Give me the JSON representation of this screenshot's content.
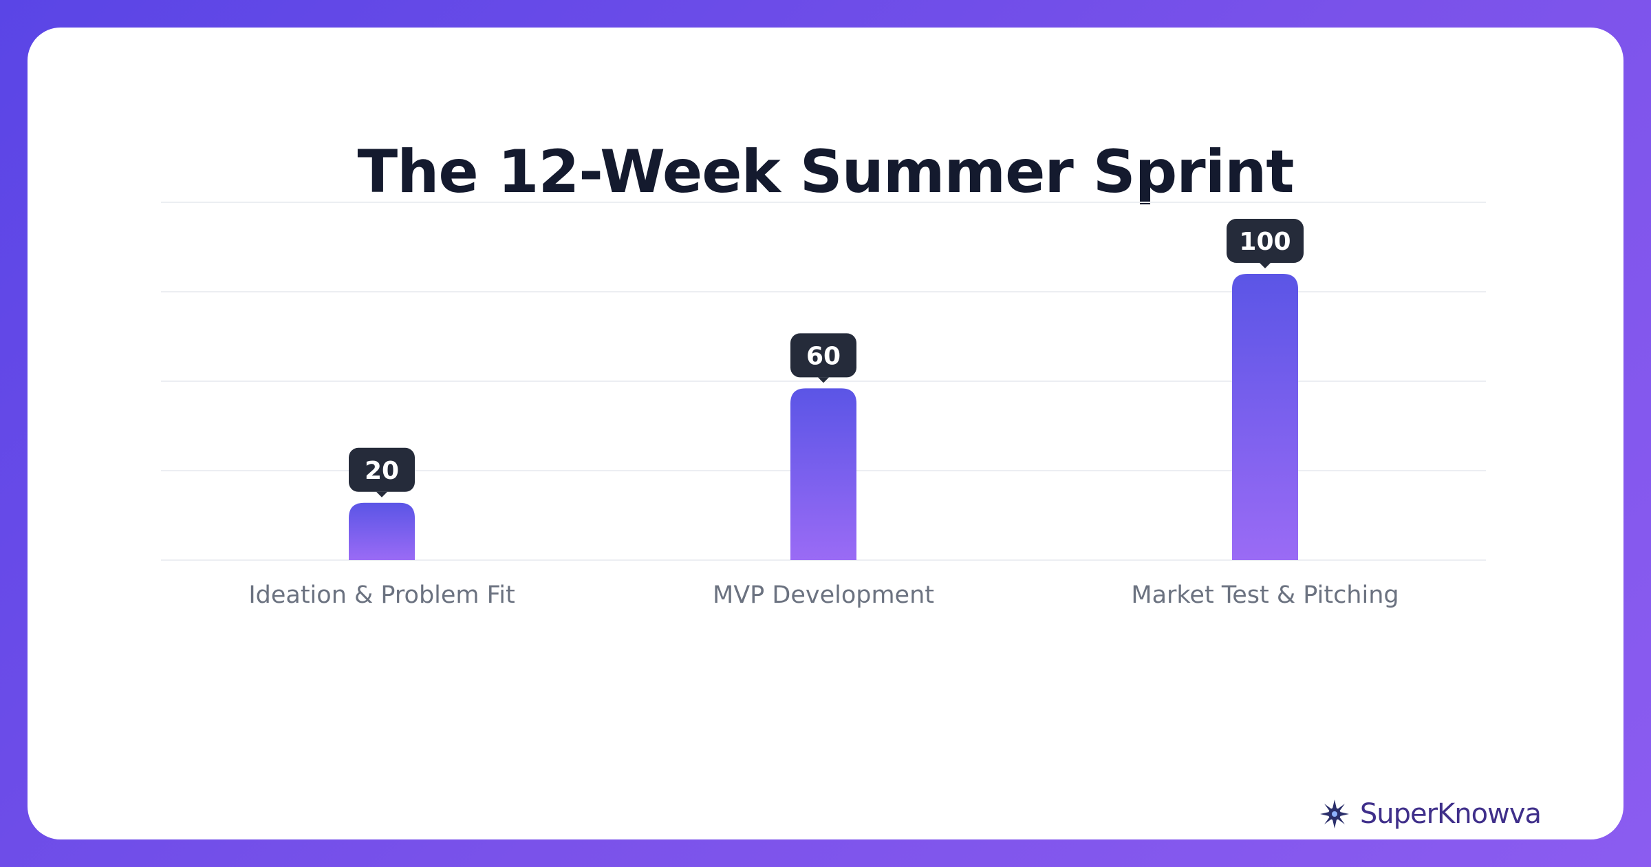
{
  "chart_data": {
    "type": "bar",
    "title": "The 12-Week Summer Sprint",
    "categories": [
      "Ideation & Problem Fit",
      "MVP Development",
      "Market Test & Pitching"
    ],
    "values": [
      20,
      60,
      100
    ],
    "ylim": [
      0,
      125
    ],
    "grid": true,
    "bar_color_top": "#5b55e6",
    "bar_color_bottom": "#9a6bf5",
    "label_bg": "#252b3a",
    "label_color": "#ffffff",
    "tick_color": "#6b7280",
    "grid_color": "#eceef2"
  },
  "brand": {
    "name": "SuperKnowva",
    "logo_icon": "starburst-icon"
  }
}
